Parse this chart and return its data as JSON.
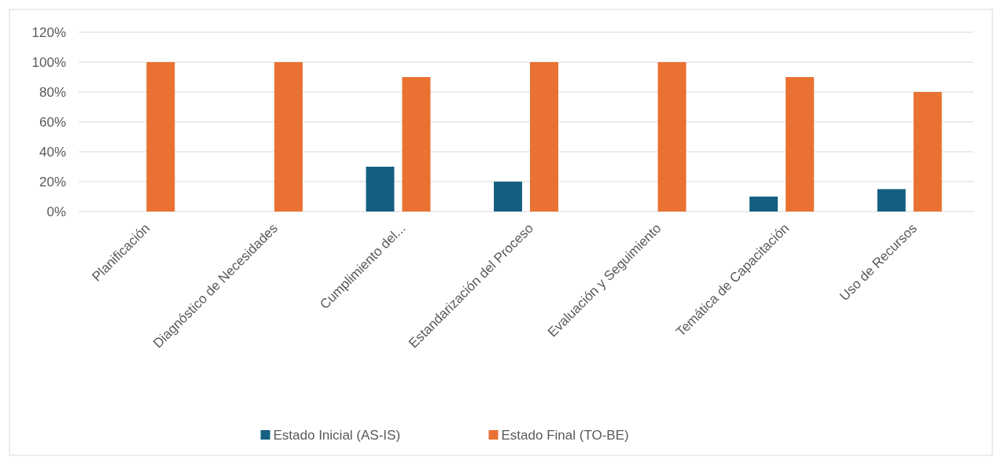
{
  "chart_data": {
    "type": "bar",
    "categories": [
      "Planificación",
      "Diagnóstico de Necesidades",
      "Cumplimiento del...",
      "Estandarización del Proceso",
      "Evaluación y Seguimiento",
      "Temática de Capacitación",
      "Uso de Recursos"
    ],
    "series": [
      {
        "name": "Estado Inicial (AS-IS)",
        "color": "#156082",
        "values": [
          0,
          0,
          30,
          20,
          0,
          10,
          15
        ]
      },
      {
        "name": "Estado Final (TO-BE)",
        "color": "#e97132",
        "values": [
          100,
          100,
          90,
          100,
          100,
          90,
          80
        ]
      }
    ],
    "ylim": [
      0,
      120
    ],
    "yticks": [
      {
        "value": 0,
        "label": "0%"
      },
      {
        "value": 20,
        "label": "20%"
      },
      {
        "value": 40,
        "label": "40%"
      },
      {
        "value": 60,
        "label": "60%"
      },
      {
        "value": 80,
        "label": "80%"
      },
      {
        "value": 100,
        "label": "100%"
      },
      {
        "value": 120,
        "label": "120%"
      }
    ],
    "grid": "y",
    "legend": "bottom"
  }
}
